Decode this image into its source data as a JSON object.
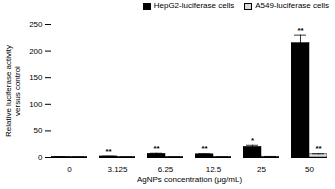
{
  "chart_data": {
    "type": "bar",
    "x_label": "AgNPs concentration (μg/mL)",
    "y_label": "Relative luciferase activity\nversus control",
    "categories": [
      "0",
      "3.125",
      "6.25",
      "12.5",
      "25",
      "50"
    ],
    "series": [
      {
        "name": "HepG2-luciferase cells",
        "color": "#000000",
        "values": [
          1,
          2,
          7,
          6,
          20,
          215
        ],
        "errors": [
          0.3,
          0.5,
          1,
          1,
          3,
          15
        ],
        "significance": [
          null,
          "**",
          "**",
          "**",
          "*",
          "**"
        ]
      },
      {
        "name": "A549-luciferase cells",
        "color": "#d9d9d9",
        "values": [
          1,
          1,
          1,
          1,
          1.5,
          6
        ],
        "errors": [
          0.2,
          0.2,
          0.2,
          0.2,
          0.3,
          1
        ],
        "significance": [
          null,
          null,
          null,
          null,
          null,
          "**"
        ]
      }
    ],
    "ylim": [
      0,
      250
    ],
    "yticks": [
      0,
      50,
      100,
      150,
      200,
      250
    ],
    "legend": "top-right"
  }
}
